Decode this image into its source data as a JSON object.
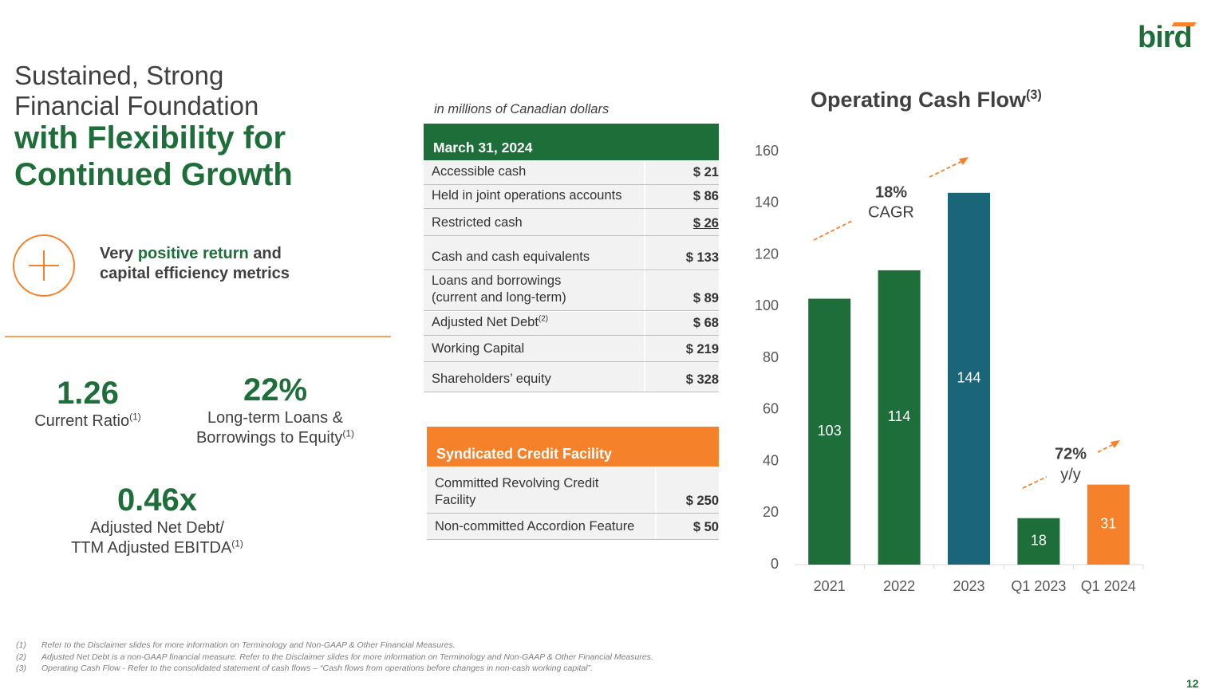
{
  "header": {
    "logo": "bird",
    "title_lines": [
      "Sustained, Strong",
      "Financial Foundation"
    ],
    "title_bold_lines": [
      "with Flexibility for",
      "Continued Growth"
    ]
  },
  "highlight": {
    "parts": [
      "Very",
      "positive return",
      "and"
    ],
    "line2": "capital efficiency metrics"
  },
  "metrics": [
    {
      "value": "1.26",
      "label_lines": [
        "Current Ratio"
      ],
      "note": "(1)"
    },
    {
      "value": "22%",
      "label_lines": [
        "Long-term Loans &",
        "Borrowings to Equity"
      ],
      "note": "(1)"
    },
    {
      "value": "0.46x",
      "label_lines": [
        "Adjusted Net Debt/",
        "TTM Adjusted EBITDA"
      ],
      "note": "(1)"
    }
  ],
  "table": {
    "caption": "in millions of Canadian dollars",
    "header": "March 31, 2024",
    "rows": [
      {
        "label": "Accessible cash",
        "value": "$ 21"
      },
      {
        "label": "Held in joint operations accounts",
        "value": "$ 86"
      },
      {
        "label": "Restricted cash",
        "value": "$ 26"
      },
      {
        "label": "Cash and cash equivalents",
        "value": "$ 133"
      },
      {
        "label": "Loans and borrowings\n(current and long-term)",
        "value": "$ 89"
      },
      {
        "label": "Adjusted Net Debt",
        "note": "(2)",
        "value": "$ 68"
      },
      {
        "label": "Working Capital",
        "value": "$ 219"
      },
      {
        "label": "Shareholders’ equity",
        "value": "$ 328"
      }
    ]
  },
  "credit": {
    "header": "Syndicated Credit Facility",
    "rows": [
      {
        "label": "Committed Revolving Credit\nFacility",
        "value": "$ 250"
      },
      {
        "label": "Non-committed Accordion Feature",
        "value": "$ 50"
      }
    ]
  },
  "chart_data": {
    "type": "bar",
    "title": "Operating Cash Flow",
    "title_note": "(3)",
    "categories": [
      "2021",
      "2022",
      "2023",
      "Q1 2023",
      "Q1 2024"
    ],
    "values": [
      103,
      114,
      144,
      18,
      31
    ],
    "colors": [
      "#1e6e3a",
      "#1e6e3a",
      "#1a6678",
      "#1e6e3a",
      "#f5822a"
    ],
    "ylim": [
      0,
      160
    ],
    "yticks": [
      0,
      20,
      40,
      60,
      80,
      100,
      120,
      140,
      160
    ],
    "grid": false,
    "annotations": [
      "18%",
      "CAGR",
      "72%",
      "y/y"
    ]
  },
  "footnotes": [
    {
      "num": "(1)",
      "text": "Refer to the Disclaimer slides for more information on Terminology and Non-GAAP & Other Financial Measures."
    },
    {
      "num": "(2)",
      "text": "Adjusted Net Debt is a non-GAAP financial measure. Refer to the Disclaimer slides for more information on Terminology and Non-GAAP & Other Financial Measures."
    },
    {
      "num": "(3)",
      "text": "Operating Cash Flow - Refer to the consolidated statement of cash flows – “Cash flows from operations before changes in non-cash working capital”."
    }
  ],
  "page_number": "12"
}
